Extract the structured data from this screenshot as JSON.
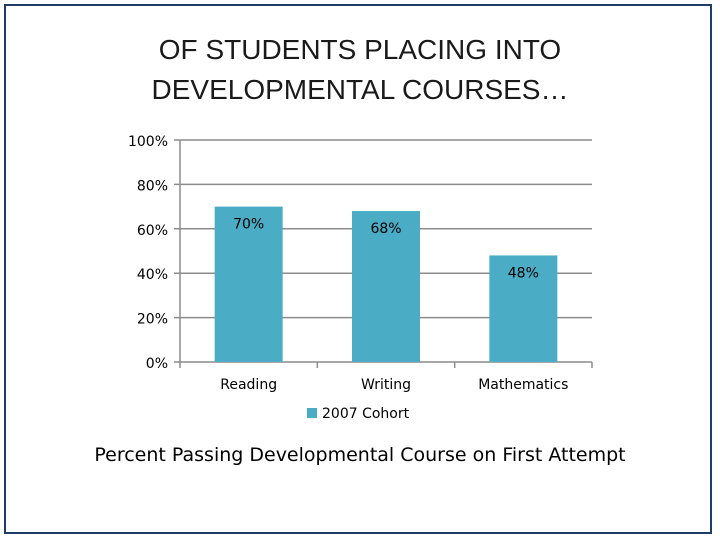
{
  "title": {
    "line1": "OF STUDENTS PLACING INTO",
    "line2": "DEVELOPMENTAL COURSES…"
  },
  "caption": "Percent Passing Developmental Course on First Attempt",
  "colors": {
    "bar": "#4bacc6",
    "grid": "#8c8c8c",
    "text": "#000000"
  },
  "chart_data": {
    "type": "bar",
    "categories": [
      "Reading",
      "Writing",
      "Mathematics"
    ],
    "series": [
      {
        "name": "2007 Cohort",
        "values": [
          70,
          68,
          48
        ],
        "labels": [
          "70%",
          "68%",
          "48%"
        ]
      }
    ],
    "ylim": [
      0,
      100
    ],
    "yticks": [
      0,
      20,
      40,
      60,
      80,
      100
    ],
    "ytick_labels": [
      "0%",
      "20%",
      "40%",
      "60%",
      "80%",
      "100%"
    ],
    "xlabel": "",
    "ylabel": "",
    "grid": true,
    "legend_position": "bottom"
  }
}
